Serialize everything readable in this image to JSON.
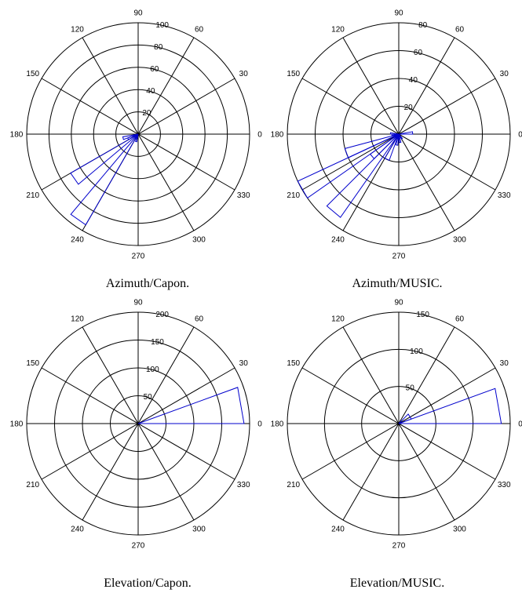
{
  "chart_data": [
    {
      "type": "polar-histogram",
      "caption": "Azimuth/Capon.",
      "angle_ticks": [
        "0",
        "30",
        "60",
        "90",
        "120",
        "150",
        "180",
        "210",
        "240",
        "270",
        "300",
        "330"
      ],
      "radial_ticks": [
        20,
        40,
        60,
        80,
        100
      ],
      "rmax": 100,
      "line_color": "#0000cc",
      "bins": [
        {
          "theta_start": 190,
          "theta_end": 200,
          "r": 14
        },
        {
          "theta_start": 200,
          "theta_end": 210,
          "r": 10
        },
        {
          "theta_start": 210,
          "theta_end": 220,
          "r": 70
        },
        {
          "theta_start": 230,
          "theta_end": 240,
          "r": 94
        },
        {
          "theta_start": 250,
          "theta_end": 260,
          "r": 7
        }
      ]
    },
    {
      "type": "polar-histogram",
      "caption": "Azimuth/MUSIC.",
      "angle_ticks": [
        "0",
        "30",
        "60",
        "90",
        "120",
        "150",
        "180",
        "210",
        "240",
        "270",
        "300",
        "330"
      ],
      "radial_ticks": [
        20,
        40,
        60,
        80
      ],
      "rmax": 80,
      "line_color": "#0000cc",
      "bins": [
        {
          "theta_start": 0,
          "theta_end": 10,
          "r": 10
        },
        {
          "theta_start": 170,
          "theta_end": 180,
          "r": 6
        },
        {
          "theta_start": 180,
          "theta_end": 190,
          "r": 5
        },
        {
          "theta_start": 195,
          "theta_end": 205,
          "r": 40
        },
        {
          "theta_start": 205,
          "theta_end": 215,
          "r": 80
        },
        {
          "theta_start": 215,
          "theta_end": 225,
          "r": 25
        },
        {
          "theta_start": 225,
          "theta_end": 235,
          "r": 73
        },
        {
          "theta_start": 240,
          "theta_end": 250,
          "r": 20
        },
        {
          "theta_start": 255,
          "theta_end": 265,
          "r": 8
        },
        {
          "theta_start": 275,
          "theta_end": 285,
          "r": 6
        },
        {
          "theta_start": 300,
          "theta_end": 310,
          "r": 4
        }
      ]
    },
    {
      "type": "polar-histogram",
      "caption": "Elevation/Capon.",
      "angle_ticks": [
        "0",
        "30",
        "60",
        "90",
        "120",
        "150",
        "180",
        "210",
        "240",
        "270",
        "300",
        "330"
      ],
      "radial_ticks": [
        50,
        100,
        150,
        200
      ],
      "rmax": 200,
      "line_color": "#0000cc",
      "bins": [
        {
          "theta_start": 0,
          "theta_end": 20,
          "r": 190
        }
      ]
    },
    {
      "type": "polar-histogram",
      "caption": "Elevation/MUSIC.",
      "angle_ticks": [
        "0",
        "30",
        "60",
        "90",
        "120",
        "150",
        "180",
        "210",
        "240",
        "270",
        "300",
        "330"
      ],
      "radial_ticks": [
        50,
        100,
        150
      ],
      "rmax": 150,
      "line_color": "#0000cc",
      "bins": [
        {
          "theta_start": 0,
          "theta_end": 20,
          "r": 138
        },
        {
          "theta_start": 20,
          "theta_end": 45,
          "r": 18
        }
      ]
    }
  ]
}
